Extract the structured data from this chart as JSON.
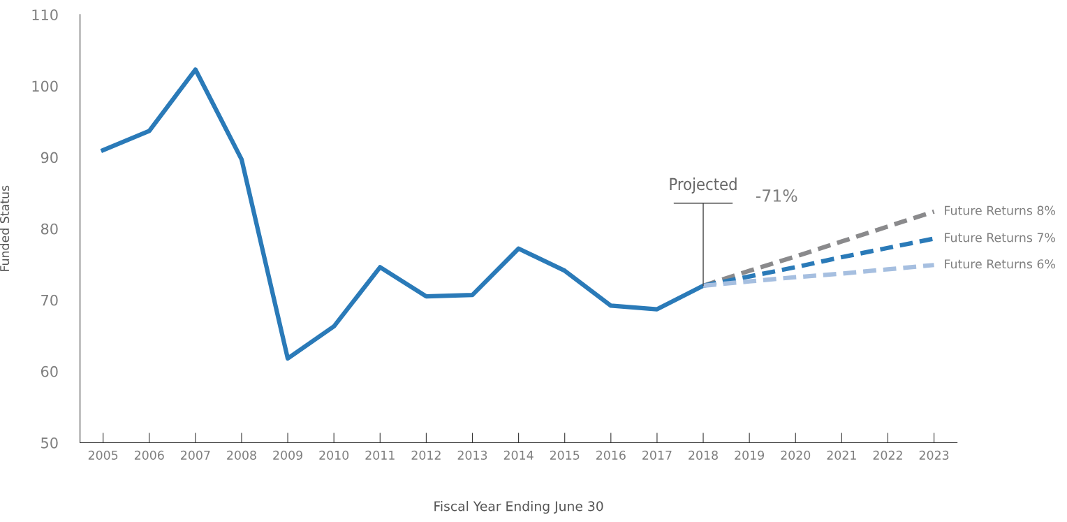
{
  "chart_data": {
    "type": "line",
    "xlabel": "Fiscal Year Ending June 30",
    "ylabel": "Funded Status",
    "x": [
      2005,
      2006,
      2007,
      2008,
      2009,
      2010,
      2011,
      2012,
      2013,
      2014,
      2015,
      2016,
      2017,
      2018,
      2019,
      2020,
      2021,
      2022,
      2023
    ],
    "series": [
      {
        "color": "#2a7ab8",
        "values": [
          91.0,
          93.7,
          102.3,
          89.7,
          61.8,
          66.3,
          74.6,
          70.5,
          70.7,
          77.2,
          74.1,
          69.2,
          68.7,
          72.0,
          null,
          null,
          null,
          null,
          null
        ],
        "line_style": "solid"
      },
      {
        "name": "Future Returns 8%",
        "color": "#8a8a8c",
        "values": [
          null,
          null,
          null,
          null,
          null,
          null,
          null,
          null,
          null,
          null,
          null,
          null,
          null,
          72.0,
          74.1,
          76.1,
          78.2,
          80.3,
          82.4
        ],
        "line_style": "dashed"
      },
      {
        "name": "Future Returns 7%",
        "color": "#2a7ab8",
        "values": [
          null,
          null,
          null,
          null,
          null,
          null,
          null,
          null,
          null,
          null,
          null,
          null,
          null,
          72.0,
          73.3,
          74.6,
          76.0,
          77.3,
          78.6
        ],
        "line_style": "dashed"
      },
      {
        "name": "Future Returns 6%",
        "color": "#a6bfe0",
        "values": [
          null,
          null,
          null,
          null,
          null,
          null,
          null,
          null,
          null,
          null,
          null,
          null,
          null,
          72.0,
          72.6,
          73.2,
          73.7,
          74.3,
          74.9
        ],
        "line_style": "dashed"
      }
    ],
    "xlim": [
      2004.5,
      2023.5
    ],
    "xticks": [
      2005,
      2006,
      2007,
      2008,
      2009,
      2010,
      2011,
      2012,
      2013,
      2014,
      2015,
      2016,
      2017,
      2018,
      2019,
      2020,
      2021,
      2022,
      2023
    ],
    "ylim": [
      50,
      110
    ],
    "yticks": [
      50,
      60,
      70,
      80,
      90,
      100,
      110
    ],
    "grid": false,
    "legend": false,
    "marker": "none",
    "annotations": [
      {
        "text": "Projected",
        "x": 2018,
        "y": 72.0
      },
      "-71%"
    ]
  }
}
